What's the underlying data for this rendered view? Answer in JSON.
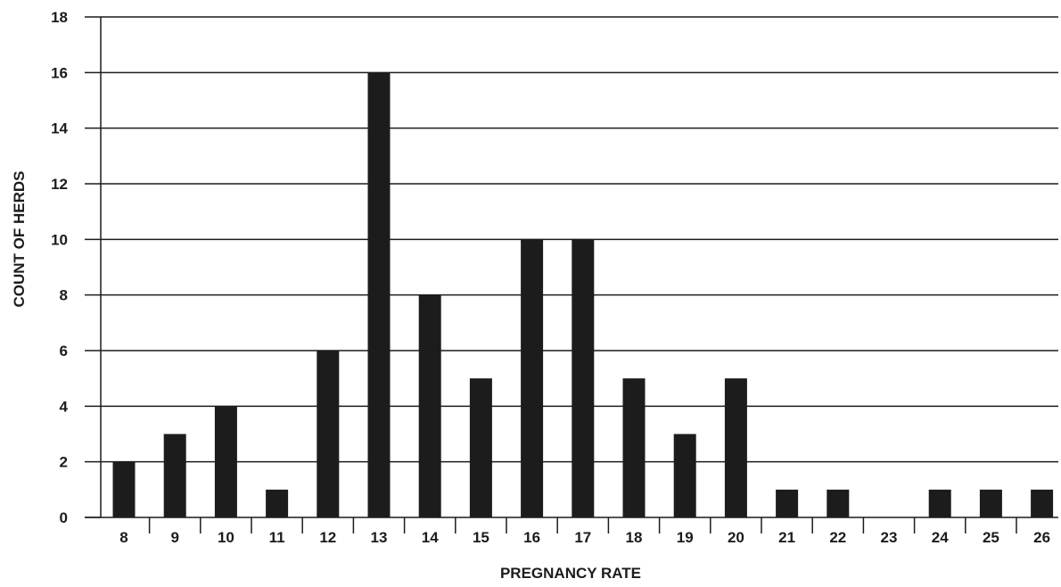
{
  "chart_data": {
    "type": "bar",
    "categories": [
      "8",
      "9",
      "10",
      "11",
      "12",
      "13",
      "14",
      "15",
      "16",
      "17",
      "18",
      "19",
      "20",
      "21",
      "22",
      "23",
      "24",
      "25",
      "26"
    ],
    "values": [
      2,
      3,
      4,
      1,
      6,
      16,
      8,
      5,
      10,
      10,
      5,
      3,
      5,
      1,
      1,
      0,
      1,
      1,
      1
    ],
    "title": "",
    "xlabel": "PREGNANCY RATE",
    "ylabel": "COUNT OF HERDS",
    "ylim": [
      0,
      18
    ],
    "yticks": [
      "0",
      "2",
      "4",
      "6",
      "8",
      "10",
      "12",
      "14",
      "16",
      "18"
    ],
    "grid": "horizontal",
    "bar_color": "#1c1c1c",
    "legend": "none"
  }
}
